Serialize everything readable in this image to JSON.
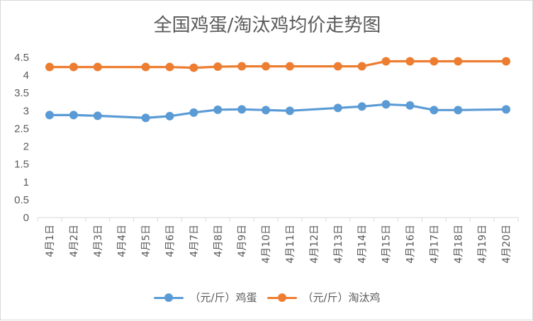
{
  "chart_data": {
    "type": "line",
    "title": "全国鸡蛋/淘汰鸡均价走势图",
    "categories": [
      "4月1日",
      "4月2日",
      "4月3日",
      "4月4日",
      "4月5日",
      "4月6日",
      "4月7日",
      "4月8日",
      "4月9日",
      "4月10日",
      "4月11日",
      "4月12日",
      "4月13日",
      "4月14日",
      "4月15日",
      "4月16日",
      "4月17日",
      "4月18日",
      "4月19日",
      "4月20日"
    ],
    "ylim": [
      0,
      4.5
    ],
    "yticks": [
      "0",
      "0.5",
      "1",
      "1.5",
      "2",
      "2.5",
      "3",
      "3.5",
      "4",
      "4.5"
    ],
    "grid": false,
    "legend_position": "bottom",
    "series": [
      {
        "name": "（元/斤）鸡蛋",
        "color": "#5b9bd5",
        "values": [
          2.88,
          2.88,
          2.86,
          null,
          2.8,
          2.85,
          2.95,
          3.03,
          3.04,
          3.02,
          3.0,
          null,
          3.08,
          3.12,
          3.18,
          3.15,
          3.02,
          3.02,
          null,
          3.04
        ]
      },
      {
        "name": "（元/斤）淘汰鸡",
        "color": "#ed7d31",
        "values": [
          4.23,
          4.23,
          4.23,
          null,
          4.23,
          4.23,
          4.21,
          4.24,
          4.25,
          4.25,
          4.25,
          null,
          4.25,
          4.25,
          4.39,
          4.39,
          4.39,
          4.39,
          null,
          4.39
        ]
      }
    ]
  }
}
